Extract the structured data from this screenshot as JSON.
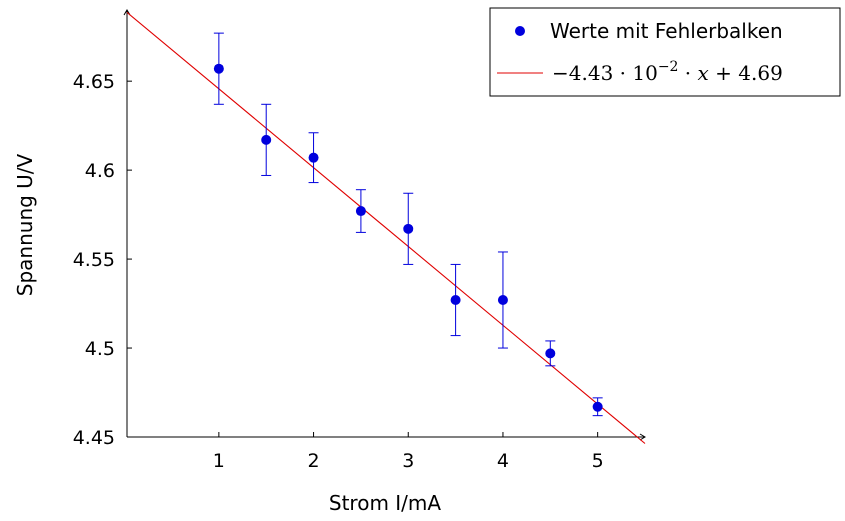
{
  "chart_data": {
    "type": "scatter",
    "xlabel": "Strom I/mA",
    "ylabel": "Spannung U/V",
    "xlim": [
      0.03,
      5.5
    ],
    "ylim": [
      4.45,
      4.69
    ],
    "xticks": [
      1,
      2,
      3,
      4,
      5
    ],
    "yticks": [
      4.45,
      4.5,
      4.55,
      4.6,
      4.65
    ],
    "xtick_labels": [
      "1",
      "2",
      "3",
      "4",
      "5"
    ],
    "ytick_labels": [
      "4.45",
      "4.5",
      "4.55",
      "4.6",
      "4.65"
    ],
    "legend_position": "top-right",
    "series": [
      {
        "name": "Werte mit Fehlerbalken",
        "kind": "points-with-error-bars",
        "color": "#0000dd",
        "points": [
          {
            "x": 1.0,
            "y": 4.657,
            "err": 0.02
          },
          {
            "x": 1.5,
            "y": 4.617,
            "err": 0.02
          },
          {
            "x": 2.0,
            "y": 4.607,
            "err": 0.014
          },
          {
            "x": 2.5,
            "y": 4.577,
            "err": 0.012
          },
          {
            "x": 3.0,
            "y": 4.567,
            "err": 0.02
          },
          {
            "x": 3.5,
            "y": 4.527,
            "err": 0.02
          },
          {
            "x": 4.0,
            "y": 4.527,
            "err": 0.027
          },
          {
            "x": 4.5,
            "y": 4.497,
            "err": 0.007
          },
          {
            "x": 5.0,
            "y": 4.467,
            "err": 0.005
          }
        ]
      },
      {
        "name": "−4.43 · 10⁻² · x + 4.69",
        "kind": "line",
        "color": "#e00000",
        "slope": -0.0443,
        "intercept": 4.69
      }
    ],
    "legend_fit_parts": {
      "prefix": "−4.43 · 10",
      "exponent": "−2",
      "suffix": " · ",
      "variable": "x",
      "tail": " + 4.69"
    }
  }
}
